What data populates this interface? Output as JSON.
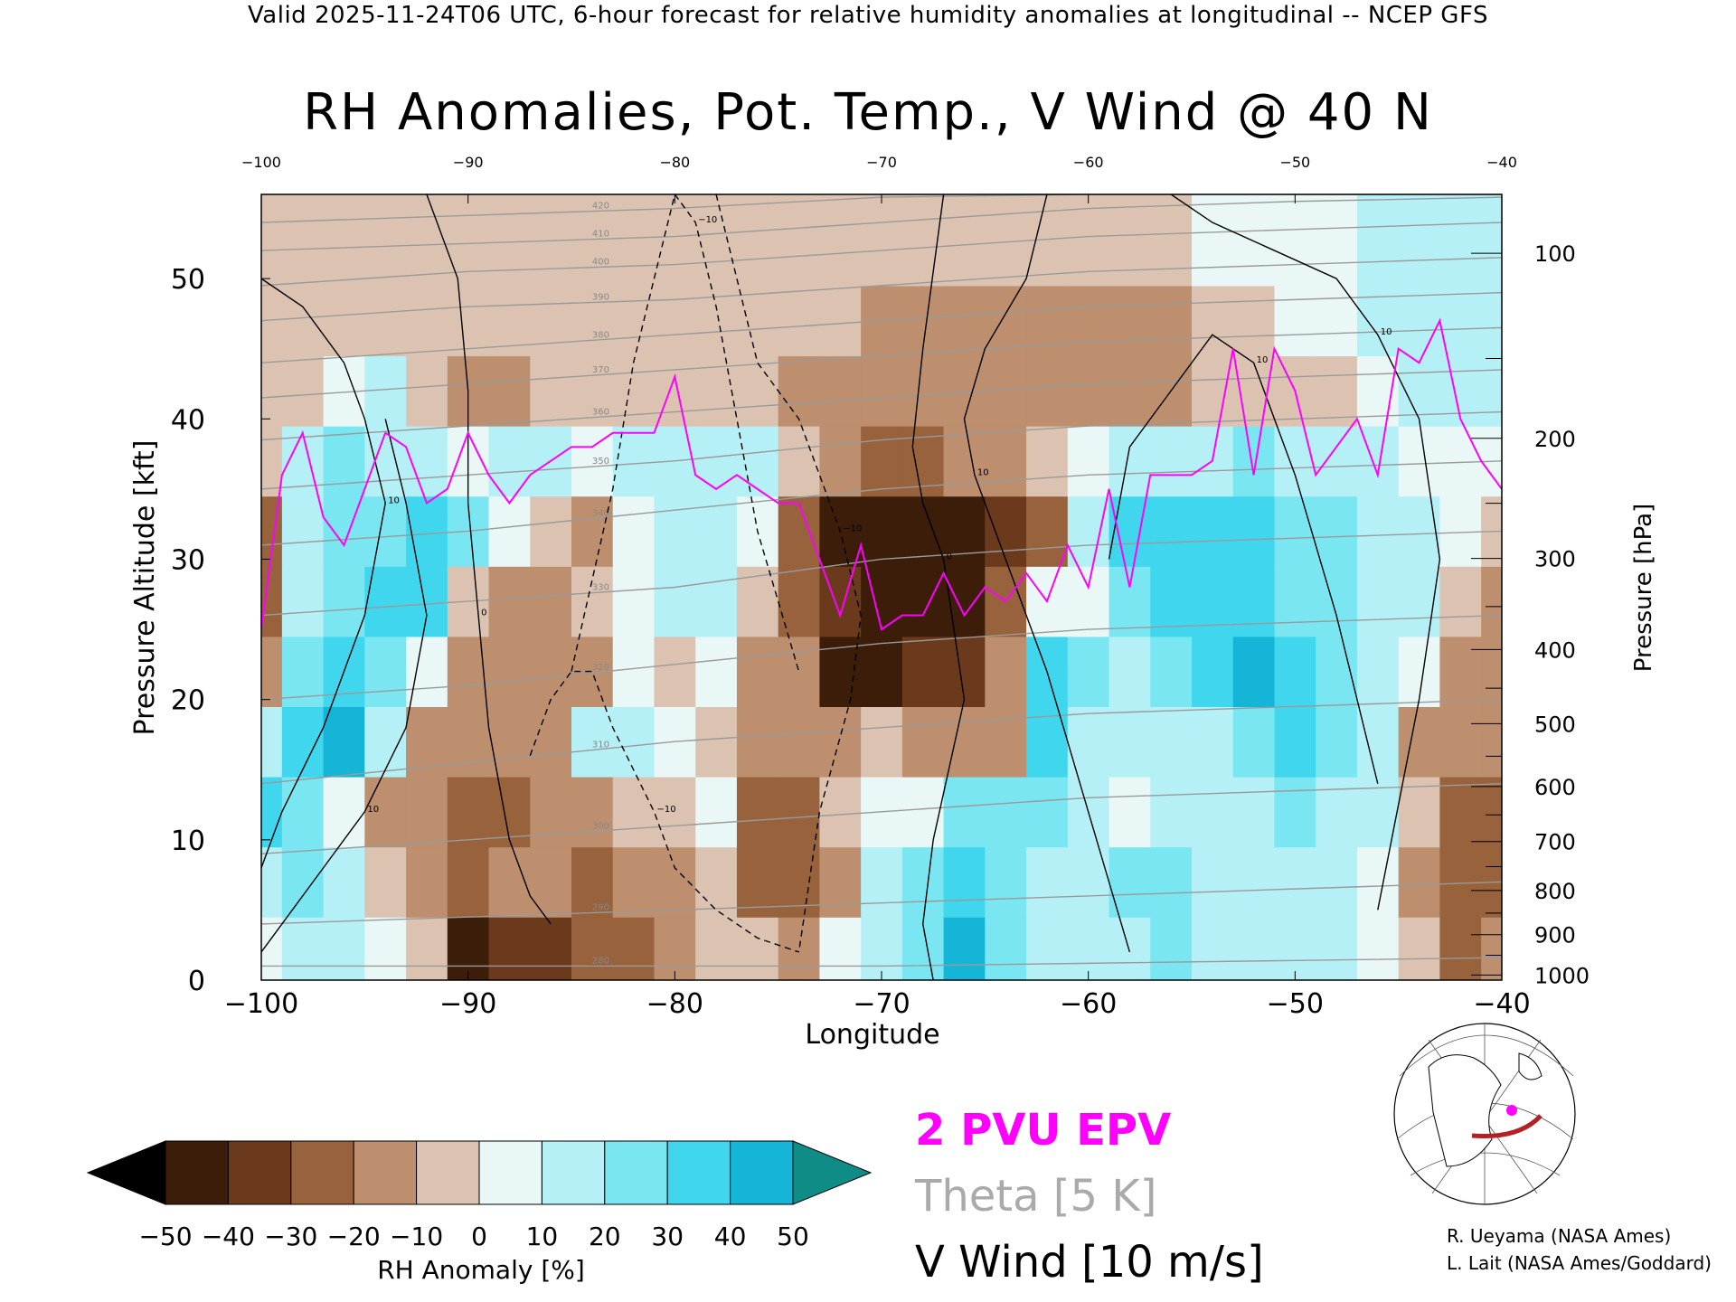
{
  "header": "Valid 2025-11-24T06 UTC, 6-hour forecast for relative humidity anomalies at longitudinal -- NCEP GFS",
  "title": "RH Anomalies, Pot. Temp., V Wind @ 40 N",
  "legend": {
    "epv": "2 PVU EPV",
    "theta": "Theta [5 K]",
    "vwind": "V Wind [10 m/s]",
    "colors": {
      "epv": "#ff00ff",
      "theta": "#aaaaaa",
      "vwind": "#000000"
    }
  },
  "credits": [
    "R. Ueyama (NASA Ames)",
    "L. Lait (NASA Ames/Goddard)"
  ],
  "colorbar": {
    "label": "RH Anomaly [%]",
    "ticks": [
      "-50",
      "-40",
      "-30",
      "-20",
      "-10",
      "0",
      "10",
      "20",
      "30",
      "40",
      "50"
    ],
    "colors": [
      "#000000",
      "#3c1d0a",
      "#6b3a1c",
      "#97623c",
      "#bd8f6e",
      "#dcc3b1",
      "#e9f7f7",
      "#b4f0f6",
      "#79e6f2",
      "#3fd6ee",
      "#14b5d6",
      "#0b8aa6",
      "#0f8c86"
    ]
  },
  "chart_data": {
    "type": "heatmap",
    "title": "RH Anomalies, Pot. Temp., V Wind @ 40 N",
    "xlabel": "Longitude",
    "ylabel": "Pressure Altitude [kft]",
    "y2label": "Pressure [hPa]",
    "xlim": [
      -100,
      -40
    ],
    "ylim": [
      0,
      56
    ],
    "x_ticks": [
      "-100",
      "-90",
      "-80",
      "-70",
      "-60",
      "-50",
      "-40"
    ],
    "top_x_ticks": [
      "-100",
      "-90",
      "-80",
      "-70",
      "-60",
      "-50",
      "-40"
    ],
    "y_ticks": [
      "0",
      "10",
      "20",
      "30",
      "40",
      "50"
    ],
    "pressure_ticks": [
      "100",
      "200",
      "300",
      "400",
      "500",
      "600",
      "700",
      "800",
      "900",
      "1000"
    ],
    "rh_x": [
      -100,
      -98,
      -96,
      -94,
      -92,
      -90,
      -88,
      -86,
      -84,
      -82,
      -80,
      -78,
      -76,
      -74,
      -72,
      -70,
      -68,
      -66,
      -64,
      -62,
      -60,
      -58,
      -56,
      -54,
      -52,
      -50,
      -48,
      -46,
      -44,
      -42,
      -40
    ],
    "rh_y": [
      2,
      7,
      12,
      17,
      22,
      27,
      32,
      37,
      42,
      47,
      52
    ],
    "rh_anomaly": [
      [
        5,
        15,
        10,
        5,
        -5,
        -40,
        -35,
        -30,
        -25,
        -20,
        -10,
        -5,
        -5,
        -10,
        5,
        10,
        20,
        40,
        20,
        15,
        10,
        15,
        20,
        15,
        10,
        10,
        15,
        5,
        -5,
        -20,
        -15
      ],
      [
        10,
        20,
        10,
        -5,
        -15,
        -20,
        -10,
        -15,
        -20,
        -15,
        -10,
        -5,
        -25,
        -25,
        -10,
        10,
        20,
        35,
        20,
        10,
        10,
        20,
        20,
        15,
        10,
        10,
        15,
        5,
        -10,
        -25,
        -20
      ],
      [
        30,
        20,
        5,
        -10,
        -10,
        -25,
        -20,
        -15,
        -10,
        -5,
        -5,
        0,
        -20,
        -20,
        -5,
        0,
        5,
        20,
        25,
        20,
        10,
        5,
        10,
        10,
        15,
        20,
        15,
        15,
        -5,
        -20,
        -20
      ],
      [
        15,
        30,
        40,
        15,
        -10,
        -15,
        -15,
        -10,
        10,
        10,
        5,
        -5,
        -15,
        -15,
        -10,
        -5,
        -10,
        -15,
        -10,
        30,
        10,
        10,
        10,
        10,
        20,
        30,
        20,
        10,
        -10,
        -15,
        -10
      ],
      [
        -10,
        20,
        30,
        25,
        5,
        -10,
        -15,
        -15,
        -10,
        5,
        -5,
        5,
        -10,
        -15,
        -40,
        -40,
        -35,
        -30,
        -10,
        30,
        20,
        10,
        20,
        35,
        40,
        35,
        20,
        10,
        0,
        -15,
        -10
      ],
      [
        -20,
        10,
        25,
        35,
        30,
        -5,
        -15,
        -10,
        -5,
        5,
        10,
        10,
        -5,
        -25,
        -35,
        -40,
        -45,
        -40,
        -25,
        5,
        5,
        20,
        30,
        35,
        30,
        25,
        20,
        15,
        10,
        -5,
        -15
      ],
      [
        -25,
        10,
        25,
        25,
        35,
        20,
        5,
        -5,
        -10,
        0,
        10,
        15,
        5,
        -25,
        -40,
        -45,
        -45,
        -40,
        -30,
        -20,
        10,
        30,
        35,
        30,
        30,
        20,
        20,
        15,
        10,
        0,
        -5
      ],
      [
        -5,
        10,
        20,
        15,
        15,
        5,
        10,
        15,
        5,
        10,
        10,
        15,
        10,
        -5,
        -15,
        -20,
        -20,
        -15,
        -10,
        -5,
        5,
        15,
        10,
        15,
        20,
        15,
        15,
        10,
        5,
        0,
        0
      ],
      [
        -5,
        -5,
        5,
        10,
        -5,
        -10,
        -10,
        -5,
        -5,
        -5,
        -5,
        -5,
        -5,
        -10,
        -10,
        -10,
        -15,
        -15,
        -15,
        -15,
        -15,
        -15,
        -10,
        -5,
        -5,
        -5,
        -5,
        0,
        10,
        15,
        10
      ],
      [
        -5,
        -5,
        -5,
        -5,
        -5,
        -5,
        -5,
        -5,
        -5,
        -5,
        -5,
        -5,
        -5,
        -5,
        -5,
        -10,
        -10,
        -10,
        -10,
        -10,
        -10,
        -10,
        -10,
        -5,
        -5,
        0,
        5,
        10,
        15,
        15,
        10
      ],
      [
        -5,
        -5,
        -5,
        -5,
        -5,
        -5,
        -5,
        -5,
        -5,
        -5,
        -5,
        -5,
        -5,
        -5,
        -5,
        -5,
        -5,
        -5,
        -5,
        -5,
        -5,
        -5,
        -5,
        0,
        0,
        5,
        5,
        10,
        10,
        10,
        10
      ]
    ],
    "tropopause_2pvu": {
      "x": [
        -100,
        -99,
        -98,
        -97,
        -96,
        -95,
        -94,
        -93,
        -92,
        -91,
        -90,
        -89,
        -88,
        -87,
        -86,
        -85,
        -84,
        -83,
        -82,
        -81,
        -80,
        -79,
        -78,
        -77,
        -76,
        -75,
        -74,
        -73,
        -72,
        -71,
        -70,
        -69,
        -68,
        -67,
        -66,
        -65,
        -64,
        -63,
        -62,
        -61,
        -60,
        -59,
        -58,
        -57,
        -56,
        -55,
        -54,
        -53,
        -52,
        -51,
        -50,
        -49,
        -48,
        -47,
        -46,
        -45,
        -44,
        -43,
        -42,
        -41,
        -40
      ],
      "y": [
        25,
        36,
        39,
        33,
        31,
        35,
        39,
        38,
        34,
        35,
        39,
        36,
        34,
        36,
        37,
        38,
        38,
        39,
        39,
        39,
        43,
        36,
        35,
        36,
        35,
        34,
        34,
        30,
        26,
        31,
        25,
        26,
        26,
        29,
        26,
        28,
        27,
        29,
        27,
        31,
        28,
        35,
        28,
        36,
        36,
        36,
        37,
        45,
        36,
        45,
        42,
        36,
        38,
        40,
        36,
        45,
        44,
        47,
        40,
        37,
        35
      ]
    },
    "theta_levels_K": [
      280,
      290,
      300,
      310,
      320,
      330,
      340,
      350,
      360,
      370,
      380,
      390,
      400,
      410,
      420
    ],
    "theta_contours": [
      {
        "label": "280",
        "y": [
          1,
          1,
          1,
          1,
          1.2,
          1.4,
          1.6
        ]
      },
      {
        "label": "290",
        "y": [
          4,
          4.5,
          5,
          5.5,
          6,
          6.5,
          7
        ]
      },
      {
        "label": "300",
        "y": [
          9,
          10,
          11,
          12,
          13,
          13.5,
          14
        ]
      },
      {
        "label": "310",
        "y": [
          14,
          15.5,
          17,
          18,
          19,
          19.5,
          20
        ]
      },
      {
        "label": "320",
        "y": [
          20,
          21,
          22.5,
          24,
          25,
          25.5,
          26
        ]
      },
      {
        "label": "330",
        "y": [
          26,
          27,
          28,
          30,
          31,
          31.5,
          32
        ]
      },
      {
        "label": "340",
        "y": [
          31,
          32,
          33.5,
          35,
          36,
          36.5,
          37
        ]
      },
      {
        "label": "350",
        "y": [
          35,
          36,
          37,
          38.5,
          39.5,
          40,
          40.5
        ]
      },
      {
        "label": "360",
        "y": [
          38.5,
          39.5,
          40.5,
          41.5,
          42.5,
          43,
          43.5
        ]
      },
      {
        "label": "370",
        "y": [
          41.5,
          42.5,
          43.5,
          44.5,
          45.5,
          46,
          46.5
        ]
      },
      {
        "label": "380",
        "y": [
          44,
          45,
          46,
          47,
          48,
          48.5,
          49
        ]
      },
      {
        "label": "390",
        "y": [
          47,
          48,
          48.5,
          49.5,
          50.5,
          51,
          51.5
        ]
      },
      {
        "label": "400",
        "y": [
          49.5,
          50.5,
          51,
          52,
          53,
          53.5,
          54
        ]
      },
      {
        "label": "410",
        "y": [
          52,
          52.5,
          53,
          54,
          55,
          55.5,
          55.8
        ]
      },
      {
        "label": "420",
        "y": [
          54,
          54.5,
          55,
          55.8,
          56,
          56,
          56
        ]
      }
    ],
    "theta_x": [
      -100,
      -90,
      -80,
      -70,
      -60,
      -50,
      -40
    ],
    "v_wind_contours": [
      {
        "label": "0",
        "dashed": false,
        "x": [
          -92,
          -90.5,
          -90,
          -90,
          -89.5,
          -89,
          -88,
          -87,
          -86
        ],
        "y": [
          56,
          50,
          42,
          34,
          26,
          18,
          10,
          6,
          4
        ]
      },
      {
        "label": "10",
        "dashed": false,
        "x": [
          -100,
          -98,
          -96,
          -95,
          -94,
          -95,
          -97,
          -99,
          -100
        ],
        "y": [
          50,
          48,
          44,
          40,
          34,
          26,
          18,
          12,
          8
        ]
      },
      {
        "label": "10",
        "dashed": false,
        "x": [
          -94,
          -93,
          -92,
          -93,
          -95,
          -97,
          -99,
          -100
        ],
        "y": [
          40,
          34,
          26,
          18,
          12,
          8,
          4,
          2
        ]
      },
      {
        "label": "0",
        "dashed": false,
        "x": [
          -67,
          -68,
          -68.5,
          -68,
          -67,
          -66,
          -67.5,
          -68,
          -67.5
        ],
        "y": [
          56,
          45,
          38,
          34,
          30,
          20,
          10,
          4,
          0
        ]
      },
      {
        "label": "10",
        "dashed": false,
        "x": [
          -62,
          -63,
          -65,
          -66,
          -65.5,
          -64,
          -62,
          -60,
          -58
        ],
        "y": [
          56,
          50,
          45,
          40,
          36,
          30,
          22,
          12,
          2
        ]
      },
      {
        "label": "10",
        "dashed": false,
        "x": [
          -56,
          -54,
          -51,
          -48,
          -46,
          -44,
          -43,
          -44,
          -46
        ],
        "y": [
          56,
          54,
          52,
          50,
          46,
          40,
          30,
          20,
          5
        ]
      },
      {
        "label": "10",
        "dashed": false,
        "x": [
          -59,
          -58,
          -56,
          -54,
          -52,
          -50,
          -48,
          -46
        ],
        "y": [
          30,
          38,
          42,
          46,
          44,
          36,
          26,
          14
        ]
      },
      {
        "label": "-10",
        "dashed": true,
        "x": [
          -85,
          -83,
          -82,
          -80,
          -79,
          -78,
          -77,
          -76,
          -74
        ],
        "y": [
          22,
          35,
          44,
          56,
          54,
          48,
          40,
          32,
          22
        ]
      },
      {
        "label": "-10",
        "dashed": true,
        "x": [
          -78,
          -77,
          -76,
          -74,
          -73,
          -72,
          -71,
          -71.5,
          -73,
          -74
        ],
        "y": [
          56,
          50,
          44,
          40,
          36,
          32,
          26,
          20,
          12,
          2
        ]
      },
      {
        "label": "-10",
        "dashed": true,
        "x": [
          -87,
          -86,
          -85,
          -84,
          -83,
          -81,
          -80,
          -78,
          -76,
          -74
        ],
        "y": [
          16,
          20,
          22,
          22,
          18,
          12,
          8,
          5,
          3,
          2
        ]
      }
    ]
  }
}
